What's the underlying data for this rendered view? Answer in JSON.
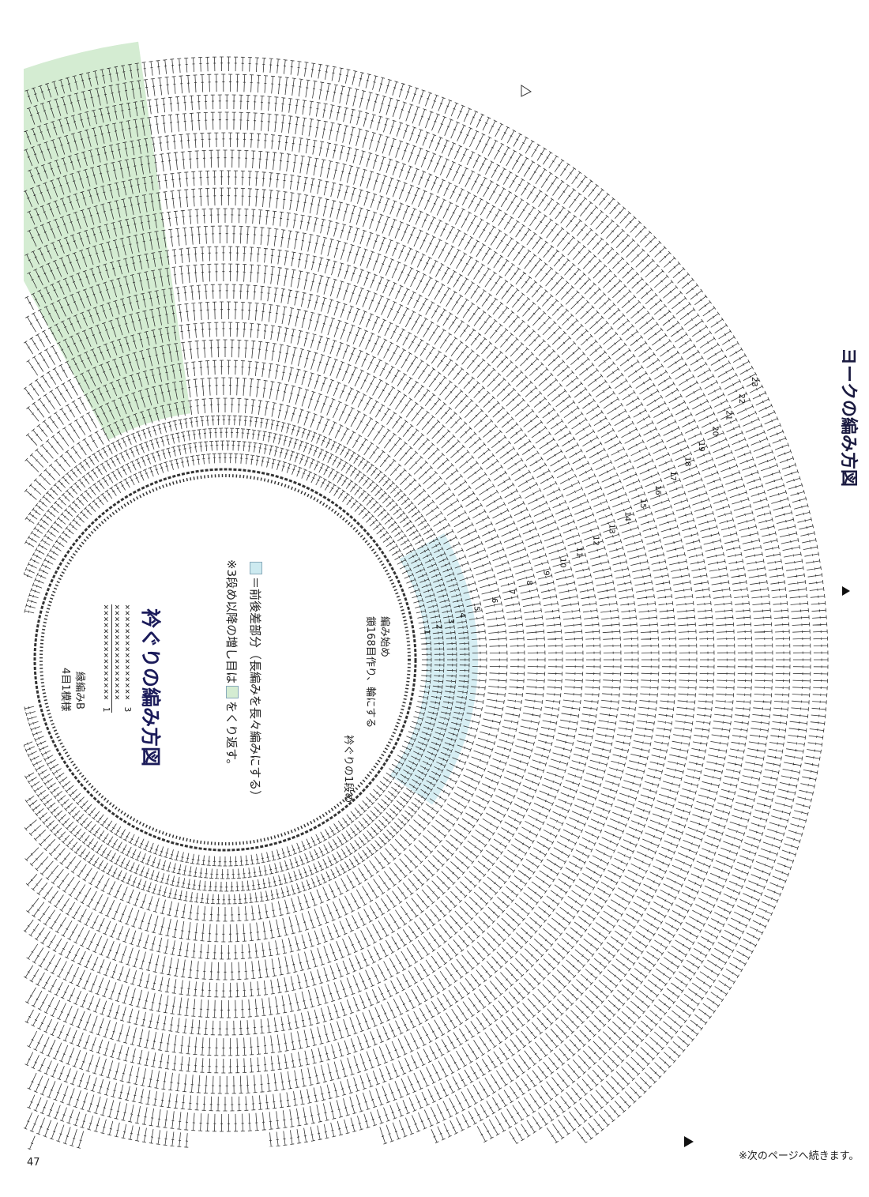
{
  "yoke_title": "ヨークの編み方図",
  "neckline_title": "衿ぐりの編み方図",
  "legend": {
    "front_back_label": "＝前後差部分（長編みを長々編みにする）",
    "repeat_note_prefix": "※3段め以降の増し目は",
    "repeat_note_suffix": "をくり返す。",
    "front_back_color": "#cdeaf0",
    "repeat_color": "#d4ecd2"
  },
  "start_note": {
    "line1": "編み始め",
    "line2": "鎖168目作り、輪にする"
  },
  "neck_row1_label": "衿ぐりの1段め",
  "border": {
    "name": "縁編みB",
    "repeat": "4目1模様",
    "row_labels": [
      "3",
      "1"
    ]
  },
  "row_numbers": [
    "1",
    "2",
    "3",
    "4",
    "5",
    "6",
    "7",
    "8",
    "9",
    "10",
    "11",
    "12",
    "13",
    "14",
    "15",
    "16",
    "17",
    "18",
    "19",
    "20",
    "21",
    "22",
    "23"
  ],
  "continued_note": "※次のページへ続きます。",
  "page_number": "47",
  "colors": {
    "ink": "#222222",
    "green_band": "#d4ecd2",
    "blue_band": "#d6eef3"
  }
}
